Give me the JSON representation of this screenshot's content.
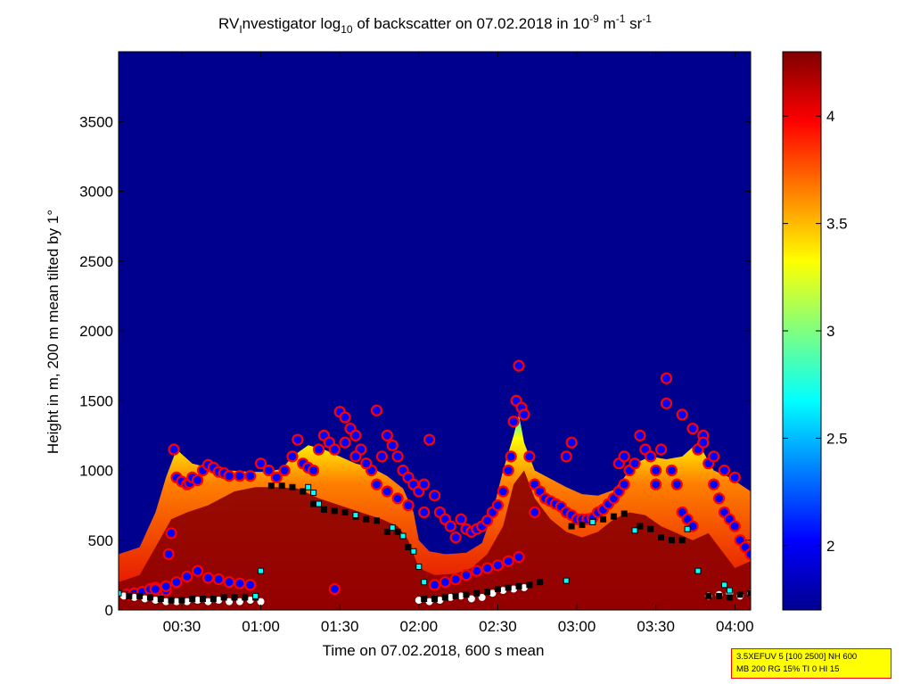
{
  "chart_data": {
    "type": "heatmap",
    "title": {
      "t1": "RV",
      "t1_sub": "I",
      "t2": "nvestigator log",
      "t2_sub": "10",
      "t3": " of backscatter on 07.02.2018 in 10",
      "t3_sup": "-9",
      "t4": " m",
      "t4_sup": "-1",
      "t5": " sr",
      "t5_sup": "-1"
    },
    "xlabel": "Time on 07.02.2018, 600 s mean",
    "ylabel": "Height in m, 200 m mean tilted by 1°",
    "x_range_minutes": [
      6,
      246
    ],
    "y_range": [
      0,
      4000
    ],
    "x_ticks": [
      {
        "minutes": 30,
        "label": "00:30"
      },
      {
        "minutes": 60,
        "label": "01:00"
      },
      {
        "minutes": 90,
        "label": "01:30"
      },
      {
        "minutes": 120,
        "label": "02:00"
      },
      {
        "minutes": 150,
        "label": "02:30"
      },
      {
        "minutes": 180,
        "label": "03:00"
      },
      {
        "minutes": 210,
        "label": "03:30"
      },
      {
        "minutes": 240,
        "label": "04:00"
      }
    ],
    "y_ticks": [
      {
        "value": 0,
        "label": "0"
      },
      {
        "value": 500,
        "label": "500"
      },
      {
        "value": 1000,
        "label": "1000"
      },
      {
        "value": 1500,
        "label": "1500"
      },
      {
        "value": 2000,
        "label": "2000"
      },
      {
        "value": 2500,
        "label": "2500"
      },
      {
        "value": 3000,
        "label": "3000"
      },
      {
        "value": 3500,
        "label": "3500"
      }
    ],
    "colorbar": {
      "range": [
        1.7,
        4.3
      ],
      "ticks": [
        {
          "value": 2,
          "label": "2"
        },
        {
          "value": 2.5,
          "label": "2.5"
        },
        {
          "value": 3,
          "label": "3"
        },
        {
          "value": 3.5,
          "label": "3.5"
        },
        {
          "value": 4,
          "label": "4"
        }
      ],
      "colormap": [
        "#00008f",
        "#0000ff",
        "#00ffff",
        "#ffff00",
        "#ff0000",
        "#800000"
      ]
    },
    "background_color": "#00008f",
    "aerosol_layer_top_m": [
      [
        6,
        400
      ],
      [
        14,
        450
      ],
      [
        20,
        700
      ],
      [
        24,
        950
      ],
      [
        28,
        1150
      ],
      [
        34,
        1050
      ],
      [
        40,
        1020
      ],
      [
        48,
        1000
      ],
      [
        56,
        990
      ],
      [
        62,
        990
      ],
      [
        68,
        1010
      ],
      [
        72,
        1100
      ],
      [
        78,
        1180
      ],
      [
        84,
        1150
      ],
      [
        90,
        1100
      ],
      [
        96,
        1050
      ],
      [
        102,
        1020
      ],
      [
        108,
        960
      ],
      [
        114,
        870
      ],
      [
        118,
        700
      ],
      [
        120,
        500
      ],
      [
        124,
        420
      ],
      [
        130,
        400
      ],
      [
        138,
        410
      ],
      [
        144,
        480
      ],
      [
        148,
        700
      ],
      [
        152,
        1000
      ],
      [
        156,
        1250
      ],
      [
        158,
        1400
      ],
      [
        160,
        1200
      ],
      [
        164,
        1000
      ],
      [
        170,
        940
      ],
      [
        176,
        880
      ],
      [
        182,
        830
      ],
      [
        188,
        820
      ],
      [
        194,
        860
      ],
      [
        198,
        950
      ],
      [
        202,
        1050
      ],
      [
        208,
        1100
      ],
      [
        214,
        1080
      ],
      [
        220,
        1100
      ],
      [
        226,
        1200
      ],
      [
        232,
        1000
      ],
      [
        238,
        950
      ],
      [
        242,
        900
      ],
      [
        246,
        850
      ]
    ],
    "core_layer_top_m": [
      [
        6,
        200
      ],
      [
        14,
        250
      ],
      [
        20,
        450
      ],
      [
        26,
        650
      ],
      [
        32,
        700
      ],
      [
        40,
        750
      ],
      [
        50,
        850
      ],
      [
        58,
        880
      ],
      [
        66,
        880
      ],
      [
        74,
        870
      ],
      [
        82,
        800
      ],
      [
        90,
        750
      ],
      [
        98,
        700
      ],
      [
        106,
        650
      ],
      [
        112,
        600
      ],
      [
        116,
        500
      ],
      [
        120,
        300
      ],
      [
        126,
        250
      ],
      [
        134,
        260
      ],
      [
        140,
        300
      ],
      [
        146,
        400
      ],
      [
        152,
        600
      ],
      [
        156,
        900
      ],
      [
        160,
        1000
      ],
      [
        164,
        800
      ],
      [
        170,
        650
      ],
      [
        176,
        560
      ],
      [
        182,
        520
      ],
      [
        188,
        560
      ],
      [
        194,
        650
      ],
      [
        200,
        700
      ],
      [
        206,
        680
      ],
      [
        212,
        600
      ],
      [
        218,
        550
      ],
      [
        224,
        500
      ],
      [
        230,
        550
      ],
      [
        236,
        400
      ],
      [
        240,
        300
      ],
      [
        246,
        350
      ]
    ],
    "series": [
      {
        "style": "blue-filled-red-ring",
        "x_minutes": [
          9,
          12,
          15,
          18,
          20,
          22,
          24,
          25,
          26,
          27,
          28,
          30,
          32,
          33,
          34,
          36,
          38,
          40,
          42,
          44,
          46,
          48,
          52,
          56,
          60,
          63,
          66,
          69,
          72,
          74,
          76,
          78,
          80,
          82,
          84,
          86,
          88,
          90,
          92,
          94,
          96,
          98,
          100,
          102,
          104,
          106,
          108,
          110,
          112,
          114,
          116,
          118,
          120,
          122,
          124,
          126,
          128,
          130,
          132,
          134,
          136,
          138,
          140,
          142,
          144,
          146,
          148,
          150,
          152,
          154,
          155,
          156,
          157,
          158,
          159,
          160,
          162,
          164,
          166,
          168,
          170,
          172,
          174,
          176,
          178,
          180,
          182,
          184,
          186,
          188,
          190,
          192,
          194,
          196,
          198,
          200,
          202,
          204,
          206,
          208,
          210,
          212,
          214,
          216,
          218,
          220,
          222,
          224,
          226,
          228,
          230,
          232,
          234,
          236,
          238,
          240,
          242,
          244,
          246,
          20,
          24,
          28,
          32,
          36,
          40,
          44,
          48,
          52,
          56,
          88,
          92,
          96,
          100,
          104,
          108,
          112,
          116,
          164,
          176,
          178,
          196,
          198,
          210,
          214,
          220,
          224,
          228,
          232,
          236,
          240,
          122,
          126,
          130,
          134,
          138,
          142,
          146,
          150,
          154,
          158
        ],
        "y_m": [
          110,
          120,
          130,
          150,
          160,
          140,
          140,
          400,
          550,
          1150,
          950,
          920,
          900,
          910,
          950,
          930,
          1000,
          1040,
          1020,
          990,
          980,
          960,
          960,
          960,
          1050,
          1000,
          950,
          1000,
          1100,
          1220,
          1050,
          1020,
          1000,
          1150,
          1250,
          1200,
          1150,
          1420,
          1380,
          1300,
          1250,
          1150,
          1050,
          1000,
          1430,
          1100,
          1250,
          1180,
          1100,
          1000,
          950,
          900,
          850,
          700,
          1220,
          820,
          700,
          650,
          600,
          520,
          650,
          580,
          560,
          580,
          600,
          640,
          700,
          750,
          850,
          1000,
          1100,
          1350,
          1500,
          1750,
          1450,
          1400,
          1100,
          900,
          850,
          800,
          780,
          760,
          740,
          700,
          680,
          650,
          650,
          650,
          660,
          700,
          720,
          760,
          800,
          850,
          900,
          1000,
          1050,
          1250,
          1150,
          1100,
          1000,
          1150,
          1480,
          1000,
          900,
          700,
          650,
          600,
          1150,
          1250,
          1050,
          900,
          800,
          700,
          650,
          600,
          500,
          450,
          400,
          150,
          170,
          200,
          240,
          280,
          230,
          220,
          200,
          190,
          180,
          150,
          1200,
          1100,
          1050,
          900,
          850,
          800,
          750,
          700,
          1100,
          1200,
          1050,
          1100,
          900,
          1660,
          1400,
          1300,
          1200,
          1100,
          1000,
          950,
          900,
          180,
          200,
          220,
          250,
          280,
          300,
          320,
          350,
          380,
          420
        ]
      },
      {
        "style": "white-filled-dark-ring",
        "x_minutes": [
          8,
          12,
          16,
          20,
          24,
          28,
          32,
          36,
          40,
          44,
          48,
          52,
          56,
          60,
          120,
          124,
          128,
          132,
          136,
          140,
          144,
          148,
          152,
          156,
          160,
          230,
          234,
          238,
          242,
          246
        ],
        "y_m": [
          100,
          90,
          80,
          70,
          60,
          60,
          60,
          70,
          60,
          70,
          60,
          60,
          70,
          60,
          70,
          60,
          70,
          90,
          100,
          80,
          90,
          120,
          140,
          150,
          160,
          100,
          110,
          120,
          100,
          120
        ]
      },
      {
        "style": "black-square",
        "x_minutes": [
          10,
          14,
          18,
          22,
          26,
          30,
          34,
          38,
          42,
          46,
          50,
          54,
          58,
          64,
          68,
          72,
          76,
          80,
          84,
          88,
          92,
          96,
          100,
          104,
          108,
          112,
          116,
          122,
          126,
          130,
          134,
          138,
          142,
          146,
          150,
          154,
          158,
          162,
          166,
          178,
          182,
          186,
          190,
          194,
          198,
          204,
          208,
          212,
          216,
          220,
          226,
          230,
          234,
          238,
          242,
          246
        ],
        "y_m": [
          100,
          100,
          90,
          80,
          70,
          70,
          80,
          80,
          80,
          90,
          90,
          90,
          90,
          890,
          890,
          880,
          850,
          760,
          720,
          710,
          700,
          670,
          650,
          640,
          560,
          560,
          450,
          80,
          80,
          90,
          100,
          110,
          120,
          130,
          150,
          160,
          170,
          180,
          200,
          600,
          610,
          630,
          650,
          670,
          690,
          600,
          580,
          520,
          500,
          500,
          280,
          100,
          100,
          90,
          110,
          120
        ]
      },
      {
        "style": "cyan-square",
        "x_minutes": [
          6,
          58,
          60,
          78,
          80,
          82,
          96,
          110,
          114,
          118,
          120,
          122,
          176,
          186,
          202,
          222,
          226,
          236,
          238
        ],
        "y_m": [
          120,
          100,
          280,
          880,
          840,
          760,
          680,
          590,
          530,
          420,
          310,
          200,
          210,
          630,
          570,
          580,
          280,
          180,
          140
        ]
      }
    ]
  },
  "info_box": {
    "line1": "3.5XEFUV 5 [100 2500] NH 600",
    "line2": "MB 200 RG 15% TI 0 HI 15"
  }
}
